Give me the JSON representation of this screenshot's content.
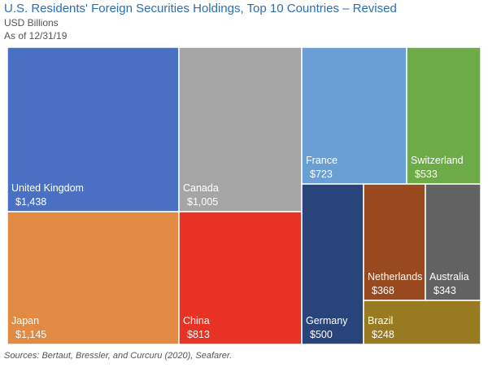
{
  "chart_data": {
    "type": "treemap",
    "title": "U.S. Residents' Foreign Securities Holdings, Top 10 Countries – Revised",
    "subtitle_lines": [
      "USD Billions",
      "As of 12/31/19"
    ],
    "source": "Sources: Bertaut, Bressler, and Curcuru (2020), Seafarer.",
    "items": [
      {
        "name": "United Kingdom",
        "value": 1438,
        "value_label": "$1,438",
        "color": "#4a70c4"
      },
      {
        "name": "Japan",
        "value": 1145,
        "value_label": "$1,145",
        "color": "#e08a44"
      },
      {
        "name": "Canada",
        "value": 1005,
        "value_label": "$1,005",
        "color": "#a5a5a5"
      },
      {
        "name": "China",
        "value": 813,
        "value_label": "$813",
        "color": "#e83324"
      },
      {
        "name": "France",
        "value": 723,
        "value_label": "$723",
        "color": "#6a9fd6"
      },
      {
        "name": "Switzerland",
        "value": 533,
        "value_label": "$533",
        "color": "#6cab48"
      },
      {
        "name": "Germany",
        "value": 500,
        "value_label": "$500",
        "color": "#28447a"
      },
      {
        "name": "Netherlands",
        "value": 368,
        "value_label": "$368",
        "color": "#984a1e"
      },
      {
        "name": "Australia",
        "value": 343,
        "value_label": "$343",
        "color": "#626262"
      },
      {
        "name": "Brazil",
        "value": 248,
        "value_label": "$248",
        "color": "#987a22"
      }
    ]
  }
}
